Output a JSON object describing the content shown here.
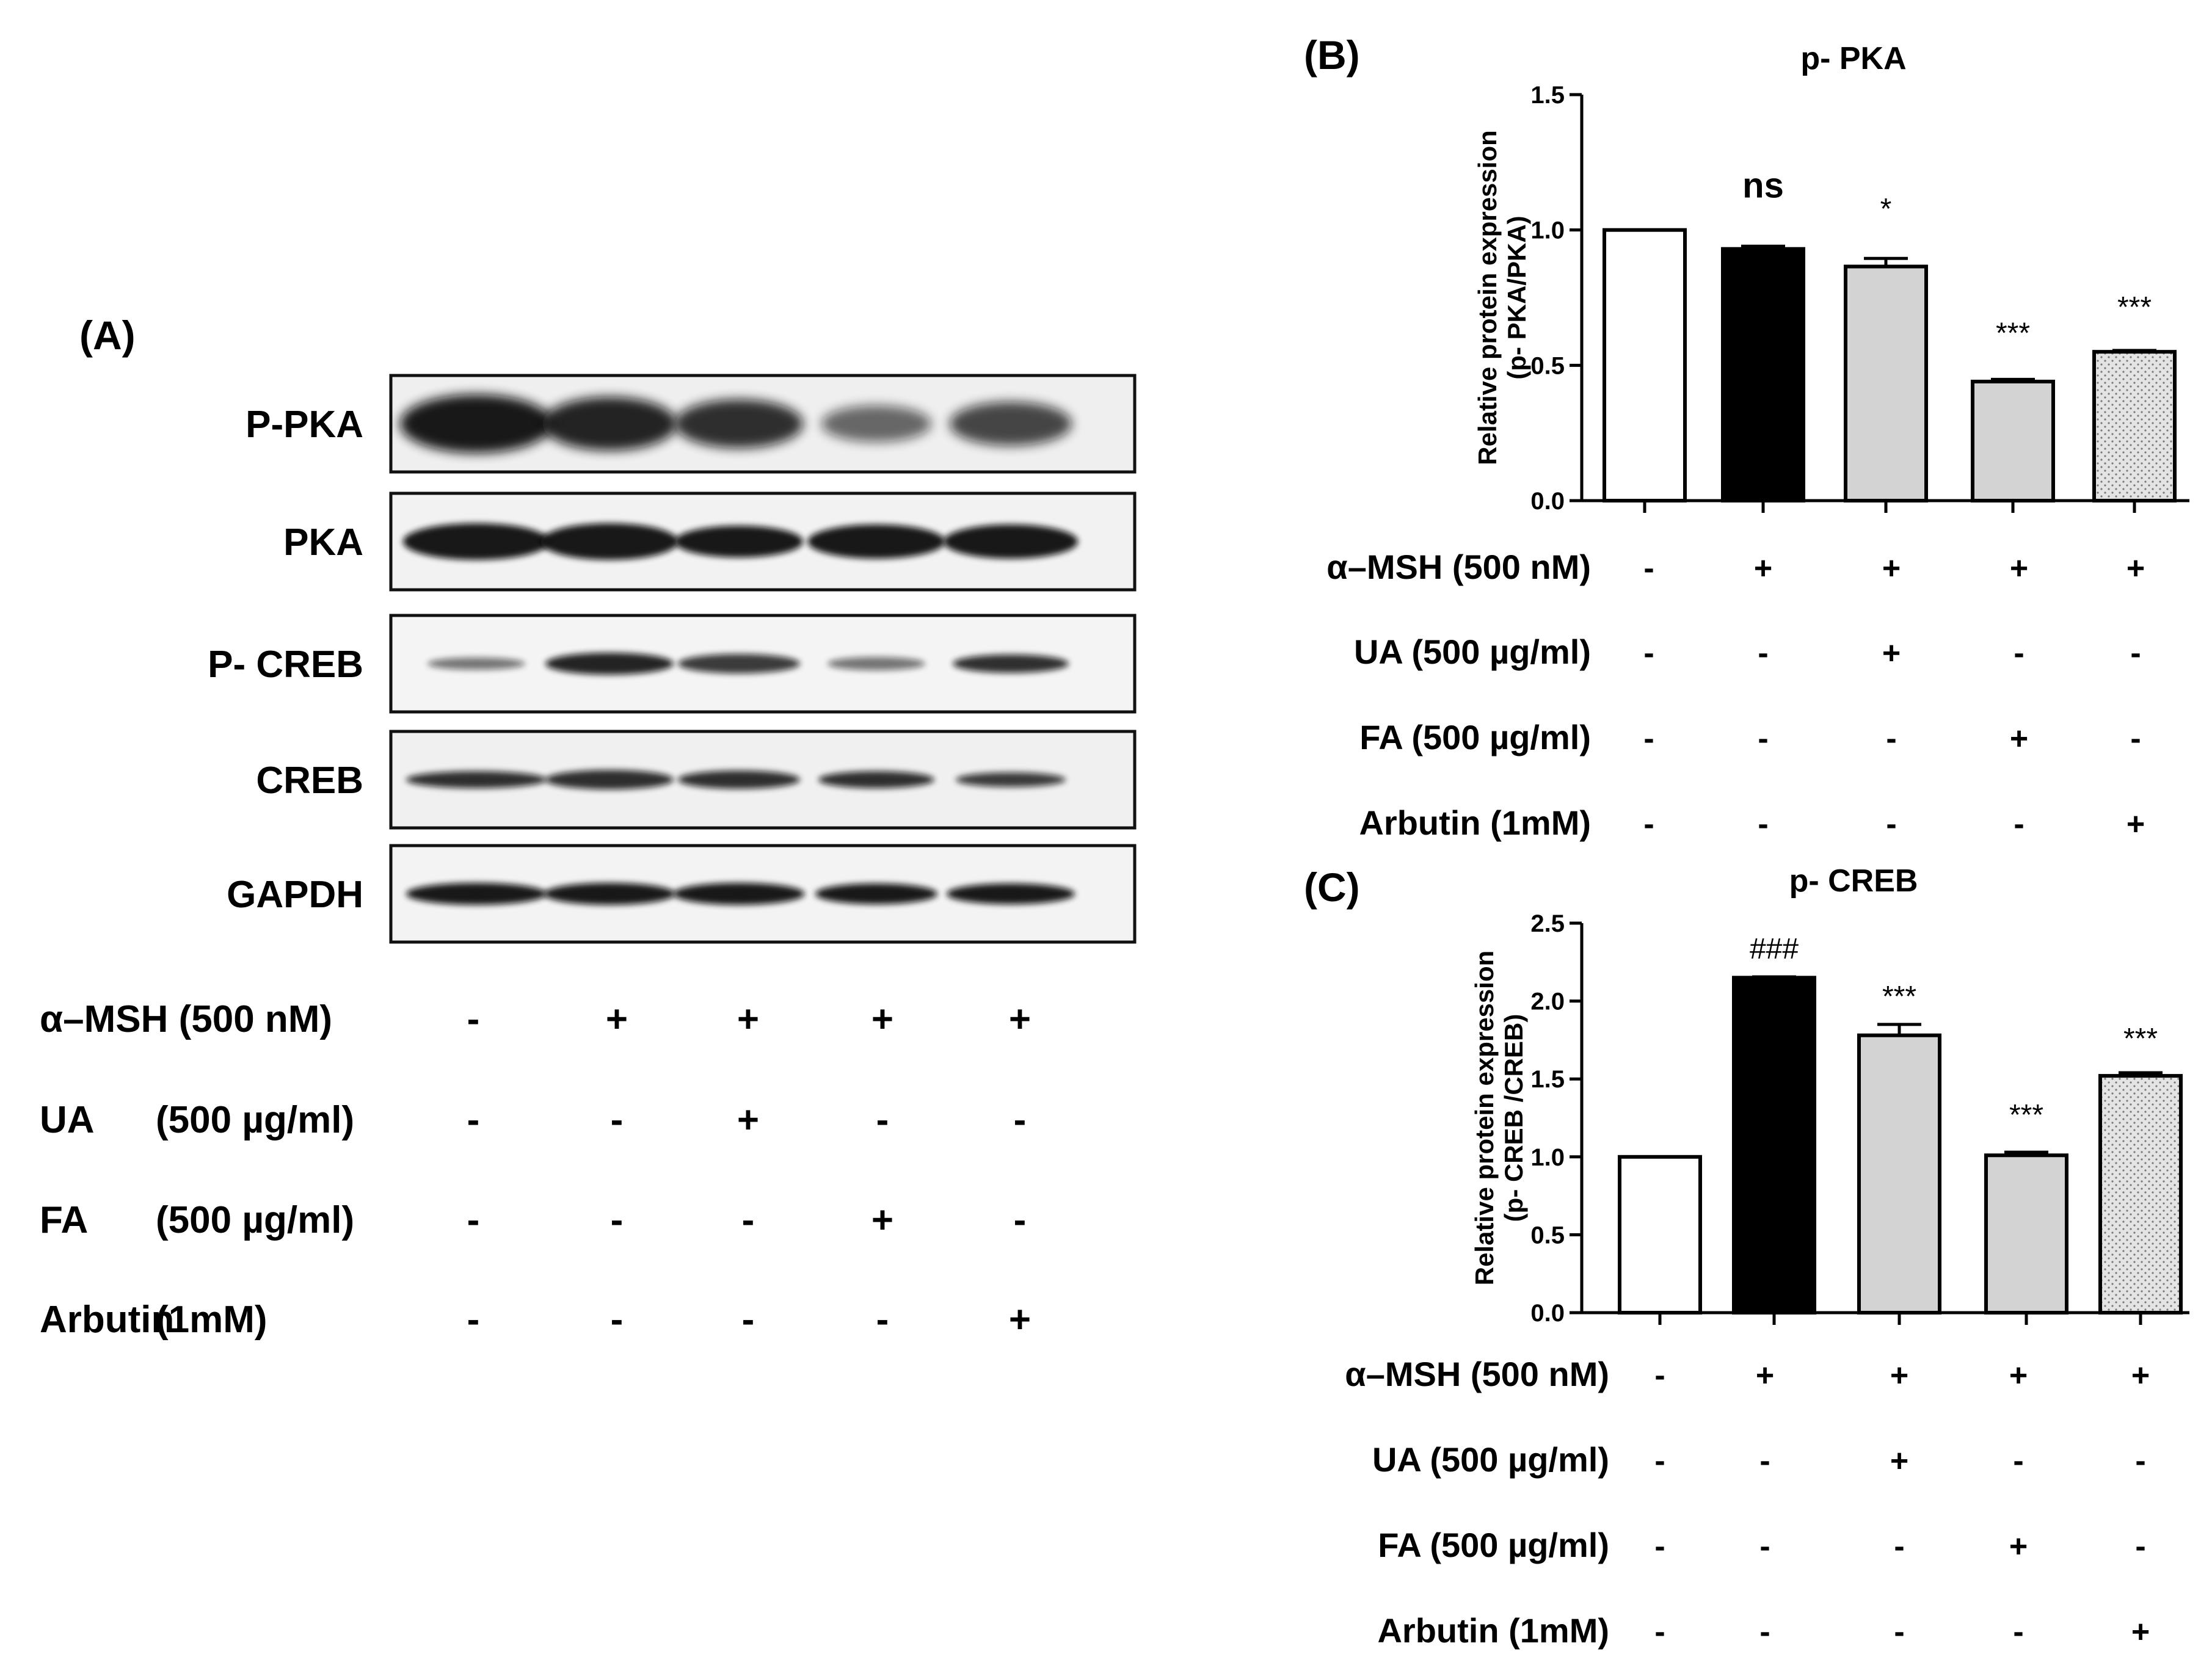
{
  "panel_a": {
    "label": "(A)",
    "blot_names": [
      "P-PKA",
      "PKA",
      "P- CREB",
      "CREB",
      "GAPDH"
    ],
    "treatments": [
      {
        "name": "α–MSH (500 nM)",
        "signs": [
          "-",
          "+",
          "+",
          "+",
          "+"
        ]
      },
      {
        "name": "UA",
        "concentration": "(500 µg/ml)",
        "signs": [
          "-",
          "-",
          "+",
          "-",
          "-"
        ]
      },
      {
        "name": "FA",
        "concentration": "(500 µg/ml)",
        "signs": [
          "-",
          "-",
          "-",
          "+",
          "-"
        ]
      },
      {
        "name": "Arbutin",
        "concentration": "(1mM)",
        "signs": [
          "-",
          "-",
          "-",
          "-",
          "+"
        ]
      }
    ]
  },
  "chart_data": [
    {
      "panel": "(B)",
      "type": "bar",
      "title": "p- PKA",
      "ylabel": "Relative protein expression",
      "ylabel2": "(p- PKA/PKA)",
      "ylim": [
        0,
        1.5
      ],
      "yticks": [
        "0.0",
        "0.5",
        "1.0",
        "1.5"
      ],
      "values": [
        1.0,
        0.93,
        0.865,
        0.44,
        0.55
      ],
      "errors": [
        0,
        0.01,
        0.03,
        0.008,
        0.005
      ],
      "fills": [
        "white",
        "black",
        "gray",
        "gray",
        "dotted"
      ],
      "annotations": [
        "",
        "ns",
        "*",
        "***",
        "***"
      ],
      "treatments": [
        {
          "name": "α–MSH (500 nM)",
          "signs": [
            "-",
            "+",
            "+",
            "+",
            "+"
          ]
        },
        {
          "name": "UA (500 µg/ml)",
          "signs": [
            "-",
            "-",
            "+",
            "-",
            "-"
          ]
        },
        {
          "name": "FA (500 µg/ml)",
          "signs": [
            "-",
            "-",
            "-",
            "+",
            "-"
          ]
        },
        {
          "name": "Arbutin (1mM)",
          "signs": [
            "-",
            "-",
            "-",
            "-",
            "+"
          ]
        }
      ]
    },
    {
      "panel": "(C)",
      "type": "bar",
      "title": "p- CREB",
      "ylabel": "Relative protein expression",
      "ylabel2": "(p- CREB /CREB)",
      "ylim": [
        0,
        2.5
      ],
      "yticks": [
        "0.0",
        "0.5",
        "1.0",
        "1.5",
        "2.0",
        "2.5"
      ],
      "values": [
        1.0,
        2.15,
        1.78,
        1.01,
        1.52
      ],
      "errors": [
        0,
        0.005,
        0.07,
        0.02,
        0.02
      ],
      "fills": [
        "white",
        "black",
        "gray",
        "gray",
        "dotted"
      ],
      "annotations": [
        "",
        "###",
        "***",
        "***",
        "***"
      ],
      "treatments": [
        {
          "name": "α–MSH (500 nM)",
          "signs": [
            "-",
            "+",
            "+",
            "+",
            "+"
          ]
        },
        {
          "name": "UA (500 µg/ml)",
          "signs": [
            "-",
            "-",
            "+",
            "-",
            "-"
          ]
        },
        {
          "name": "FA (500 µg/ml)",
          "signs": [
            "-",
            "-",
            "-",
            "+",
            "-"
          ]
        },
        {
          "name": "Arbutin (1mM)",
          "signs": [
            "-",
            "-",
            "-",
            "-",
            "+"
          ]
        }
      ]
    }
  ],
  "colors": {
    "ink": "#000000",
    "black_bar": "#000000",
    "gray_bar": "#d3d3d3",
    "white_bar": "#ffffff",
    "dot_bar": "#e2e2e2"
  }
}
